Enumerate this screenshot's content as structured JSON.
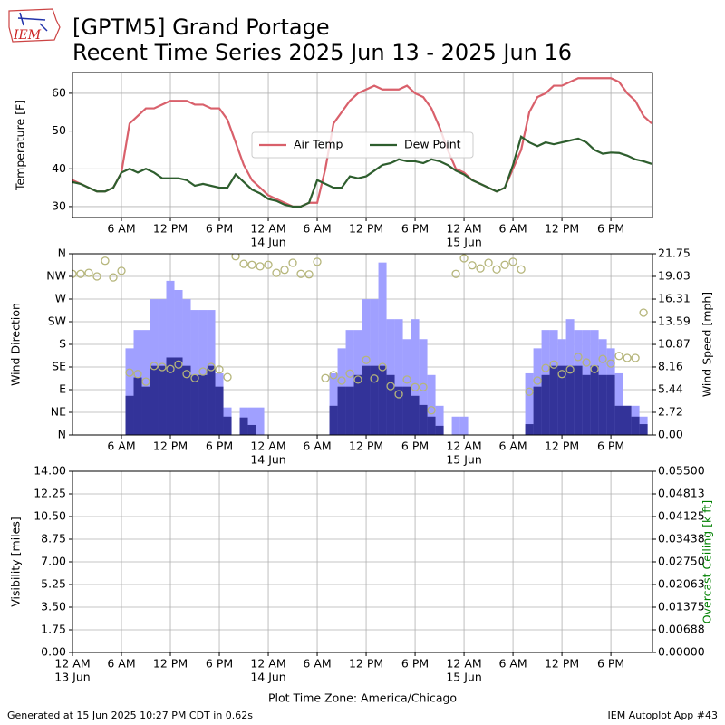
{
  "logo_text": "IEM",
  "title": "[GPTM5] Grand Portage",
  "subtitle": "Recent Time Series 2025 Jun 13 - 2025 Jun 16",
  "footer_left": "Generated at 15 Jun 2025 10:27 PM CDT in 0.62s",
  "footer_right": "IEM Autoplot App #43",
  "chart_data": [
    {
      "type": "line",
      "ylabel": "Temperature [F]",
      "legend": "center",
      "grid": true,
      "xlim": [
        0,
        71.1
      ],
      "ylim": [
        27.1,
        65.5
      ],
      "yticks": [
        30,
        40,
        50,
        60
      ],
      "xticks": [
        {
          "value": 6,
          "label": "6 AM"
        },
        {
          "value": 12,
          "label": "12 PM"
        },
        {
          "value": 18,
          "label": "6 PM"
        },
        {
          "value": 24,
          "label": "12 AM",
          "date": "14 Jun"
        },
        {
          "value": 30,
          "label": "6 AM"
        },
        {
          "value": 36,
          "label": "12 PM"
        },
        {
          "value": 42,
          "label": "6 PM"
        },
        {
          "value": 48,
          "label": "12 AM",
          "date": "15 Jun"
        },
        {
          "value": 54,
          "label": "6 AM"
        },
        {
          "value": 60,
          "label": "12 PM"
        },
        {
          "value": 66,
          "label": "6 PM"
        }
      ],
      "x": [
        0,
        1,
        2,
        3,
        4,
        5,
        6,
        7,
        8,
        9,
        10,
        11,
        12,
        13,
        14,
        15,
        16,
        17,
        18,
        19,
        20,
        21,
        22,
        23,
        24,
        25,
        26,
        27,
        28,
        29,
        30,
        31,
        32,
        33,
        34,
        35,
        36,
        37,
        38,
        39,
        40,
        41,
        42,
        43,
        44,
        45,
        46,
        47,
        48,
        49,
        50,
        51,
        52,
        53,
        54,
        55,
        56,
        57,
        58,
        59,
        60,
        61,
        62,
        63,
        64,
        65,
        66,
        67,
        68,
        69,
        70,
        71
      ],
      "series": [
        {
          "name": "Air Temp",
          "color": "#d9606b",
          "values": [
            37,
            36,
            35,
            34,
            34,
            35,
            39,
            52,
            54,
            56,
            56,
            57,
            58,
            58,
            58,
            57,
            57,
            56,
            56,
            53,
            47,
            41,
            37,
            35,
            33,
            32,
            31,
            30,
            30,
            31,
            31,
            40,
            52,
            55,
            58,
            60,
            61,
            62,
            61,
            61,
            61,
            62,
            60,
            59,
            56,
            51,
            45,
            40,
            39,
            37,
            36,
            35,
            34,
            35,
            40,
            45,
            55,
            59,
            60,
            62,
            62,
            63,
            64,
            64,
            64,
            64,
            64,
            63,
            60,
            58,
            54,
            52
          ]
        },
        {
          "name": "Dew Point",
          "color": "#2e5e2e",
          "values": [
            36.5,
            36,
            35,
            34,
            34,
            35,
            39,
            40,
            39,
            40,
            39,
            37.5,
            37.5,
            37.5,
            37,
            35.5,
            36,
            35.5,
            35,
            35,
            38.5,
            36.5,
            34.5,
            33.5,
            32,
            31.5,
            30.5,
            30,
            30,
            31,
            37,
            36,
            35,
            35,
            38,
            37.5,
            38,
            39.5,
            41,
            41.5,
            42.5,
            42,
            42,
            41.5,
            42.5,
            42,
            41,
            39.5,
            38.5,
            37,
            36,
            35,
            34,
            35,
            41,
            48.5,
            47,
            46,
            47,
            46.5,
            47,
            47.5,
            48,
            47,
            45,
            44,
            44.3,
            44.2,
            43.5,
            42.5,
            42,
            41.3
          ]
        }
      ]
    },
    {
      "type": "bar",
      "ylabel": "Wind Direction",
      "y2label": "Wind Speed [mph]",
      "grid": true,
      "xlim": [
        0,
        71.1
      ],
      "ylim": [
        0,
        360
      ],
      "y2lim": [
        0,
        21.75
      ],
      "yticks": [
        {
          "value": 0,
          "label": "N"
        },
        {
          "value": 45,
          "label": "NE"
        },
        {
          "value": 90,
          "label": "E"
        },
        {
          "value": 135,
          "label": "SE"
        },
        {
          "value": 180,
          "label": "S"
        },
        {
          "value": 225,
          "label": "SW"
        },
        {
          "value": 270,
          "label": "W"
        },
        {
          "value": 315,
          "label": "NW"
        },
        {
          "value": 360,
          "label": "N"
        }
      ],
      "y2ticks": [
        {
          "value": 0,
          "label": "0.00"
        },
        {
          "value": 2.72,
          "label": "2.72"
        },
        {
          "value": 5.44,
          "label": "5.44"
        },
        {
          "value": 8.16,
          "label": "8.16"
        },
        {
          "value": 10.87,
          "label": "10.87"
        },
        {
          "value": 13.59,
          "label": "13.59"
        },
        {
          "value": 16.31,
          "label": "16.31"
        },
        {
          "value": 19.03,
          "label": "19.03"
        },
        {
          "value": 21.75,
          "label": "21.75"
        }
      ],
      "xticks": [
        {
          "value": 6,
          "label": "6 AM"
        },
        {
          "value": 12,
          "label": "12 PM"
        },
        {
          "value": 18,
          "label": "6 PM"
        },
        {
          "value": 24,
          "label": "12 AM",
          "date": "14 Jun"
        },
        {
          "value": 30,
          "label": "6 AM"
        },
        {
          "value": 36,
          "label": "12 PM"
        },
        {
          "value": 42,
          "label": "6 PM"
        },
        {
          "value": 48,
          "label": "12 AM",
          "date": "15 Jun"
        },
        {
          "value": 54,
          "label": "6 AM"
        },
        {
          "value": 60,
          "label": "12 PM"
        },
        {
          "value": 66,
          "label": "6 PM"
        }
      ],
      "x": [
        0,
        1,
        2,
        3,
        4,
        5,
        6,
        7,
        8,
        9,
        10,
        11,
        12,
        13,
        14,
        15,
        16,
        17,
        18,
        19,
        20,
        21,
        22,
        23,
        24,
        25,
        26,
        27,
        28,
        29,
        30,
        31,
        32,
        33,
        34,
        35,
        36,
        37,
        38,
        39,
        40,
        41,
        42,
        43,
        44,
        45,
        46,
        47,
        48,
        49,
        50,
        51,
        52,
        53,
        54,
        55,
        56,
        57,
        58,
        59,
        60,
        61,
        62,
        63,
        64,
        65,
        66,
        67,
        68,
        69,
        70,
        71
      ],
      "series": [
        {
          "type": "bar",
          "axis": "y2",
          "color": "#a0a0ff",
          "values": [
            null,
            null,
            null,
            null,
            null,
            null,
            null,
            10.4,
            12.6,
            12.6,
            16.3,
            16.3,
            18.5,
            17.4,
            16.3,
            15.0,
            15.0,
            15.0,
            7.4,
            3.3,
            null,
            3.3,
            3.3,
            3.3,
            null,
            null,
            null,
            null,
            null,
            null,
            null,
            null,
            7.4,
            10.4,
            12.6,
            12.6,
            16.3,
            16.3,
            20.7,
            13.9,
            13.9,
            11.5,
            13.9,
            11.5,
            7.2,
            3.5,
            null,
            2.2,
            2.2,
            null,
            null,
            null,
            null,
            null,
            null,
            null,
            7.4,
            10.4,
            12.6,
            12.6,
            11.5,
            13.9,
            12.6,
            12.6,
            12.6,
            11.5,
            10.4,
            7.4,
            3.5,
            3.5,
            2.2,
            null
          ]
        },
        {
          "type": "bar",
          "axis": "y2",
          "color": "#333399",
          "values": [
            null,
            null,
            null,
            null,
            null,
            null,
            null,
            4.7,
            6.9,
            5.8,
            8.3,
            8.3,
            9.3,
            9.3,
            8.3,
            7.2,
            7.2,
            8.3,
            5.8,
            2.2,
            null,
            2.1,
            1.2,
            null,
            null,
            null,
            null,
            null,
            null,
            null,
            null,
            null,
            3.5,
            5.8,
            5.8,
            7.2,
            8.3,
            8.3,
            8.3,
            7.2,
            5.8,
            5.8,
            4.7,
            3.6,
            2.2,
            1.1,
            null,
            null,
            null,
            null,
            null,
            null,
            null,
            null,
            null,
            null,
            1.3,
            5.8,
            7.2,
            8.3,
            8.3,
            8.3,
            8.3,
            7.2,
            8.3,
            7.2,
            7.2,
            3.5,
            3.5,
            2.2,
            1.3,
            null
          ]
        },
        {
          "type": "scatter",
          "color": "#b5b57a",
          "values": [
            320,
            320,
            322,
            315,
            346,
            313,
            326,
            124,
            121,
            106,
            137,
            135,
            131,
            140,
            121,
            113,
            126,
            135,
            130,
            115,
            355,
            340,
            338,
            335,
            338,
            322,
            328,
            342,
            320,
            319,
            344,
            113,
            119,
            108,
            122,
            110,
            149,
            112,
            135,
            97,
            81,
            110,
            95,
            95,
            49,
            null,
            null,
            320,
            351,
            337,
            331,
            342,
            329,
            338,
            344,
            329,
            86,
            108,
            133,
            140,
            121,
            130,
            155,
            144,
            131,
            151,
            142,
            157,
            153,
            153,
            243,
            null
          ]
        }
      ]
    },
    {
      "type": "line",
      "ylabel": "Visibility [miles]",
      "y2label": "Overcast Ceiling [k ft]",
      "y2label_color": "green",
      "xlabel": "Plot Time Zone: America/Chicago",
      "grid": true,
      "xlim": [
        0,
        71.1
      ],
      "ylim": [
        0,
        14
      ],
      "y2lim": [
        0,
        0.055
      ],
      "yticks": [
        {
          "value": 0,
          "label": "0.00"
        },
        {
          "value": 1.75,
          "label": "1.75"
        },
        {
          "value": 3.5,
          "label": "3.50"
        },
        {
          "value": 5.25,
          "label": "5.25"
        },
        {
          "value": 7,
          "label": "7.00"
        },
        {
          "value": 8.75,
          "label": "8.75"
        },
        {
          "value": 10.5,
          "label": "10.50"
        },
        {
          "value": 12.25,
          "label": "12.25"
        },
        {
          "value": 14,
          "label": "14.00"
        }
      ],
      "y2ticks": [
        {
          "value": 0,
          "label": "0.00000"
        },
        {
          "value": 0.006875,
          "label": "0.00688"
        },
        {
          "value": 0.01375,
          "label": "0.01375"
        },
        {
          "value": 0.020625,
          "label": "0.02063"
        },
        {
          "value": 0.0275,
          "label": "0.02750"
        },
        {
          "value": 0.034375,
          "label": "0.03438"
        },
        {
          "value": 0.04125,
          "label": "0.04125"
        },
        {
          "value": 0.048125,
          "label": "0.04813"
        },
        {
          "value": 0.055,
          "label": "0.05500"
        }
      ],
      "xticks": [
        {
          "value": 0,
          "label": "12 AM",
          "date": "13 Jun"
        },
        {
          "value": 6,
          "label": "6 AM"
        },
        {
          "value": 12,
          "label": "12 PM"
        },
        {
          "value": 18,
          "label": "6 PM"
        },
        {
          "value": 24,
          "label": "12 AM",
          "date": "14 Jun"
        },
        {
          "value": 30,
          "label": "6 AM"
        },
        {
          "value": 36,
          "label": "12 PM"
        },
        {
          "value": 42,
          "label": "6 PM"
        },
        {
          "value": 48,
          "label": "12 AM",
          "date": "15 Jun"
        },
        {
          "value": 54,
          "label": "6 AM"
        },
        {
          "value": 60,
          "label": "12 PM"
        },
        {
          "value": 66,
          "label": "6 PM"
        }
      ]
    }
  ]
}
